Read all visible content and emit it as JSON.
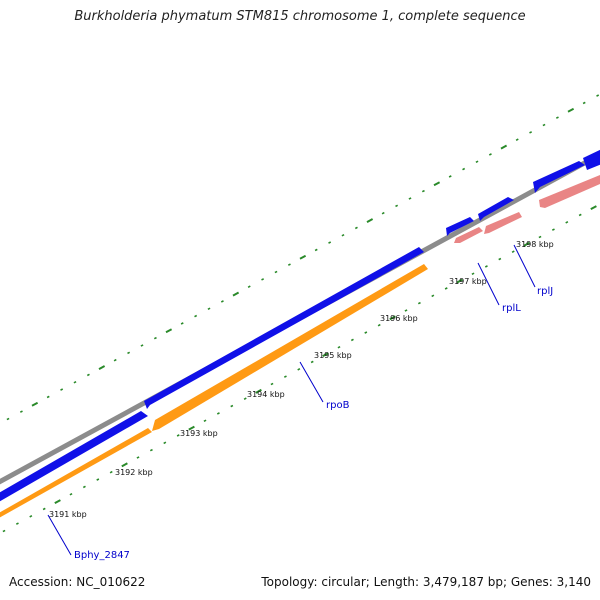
{
  "title": "Burkholderia phymatum STM815 chromosome 1, complete sequence",
  "footer": {
    "accession": "Accession: NC_010622",
    "summary": "Topology: circular; Length: 3,479,187 bp; Genes: 3,140"
  },
  "colors": {
    "backbone": "#8c8c8c",
    "gene_forward": "#1010e8",
    "gene_highlight": "#ff9a14",
    "gene_pale": "#e98585",
    "tick": "#2a8a2a",
    "label": "#0000cc"
  },
  "ticks": [
    {
      "label": "3191 kbp"
    },
    {
      "label": "3192 kbp"
    },
    {
      "label": "3193 kbp"
    },
    {
      "label": "3194 kbp"
    },
    {
      "label": "3195 kbp"
    },
    {
      "label": "3196 kbp"
    },
    {
      "label": "3197 kbp"
    },
    {
      "label": "3198 kbp"
    }
  ],
  "gene_labels": [
    {
      "name": "Bphy_2847"
    },
    {
      "name": "rpoB"
    },
    {
      "name": "rplL"
    },
    {
      "name": "rplJ"
    }
  ]
}
